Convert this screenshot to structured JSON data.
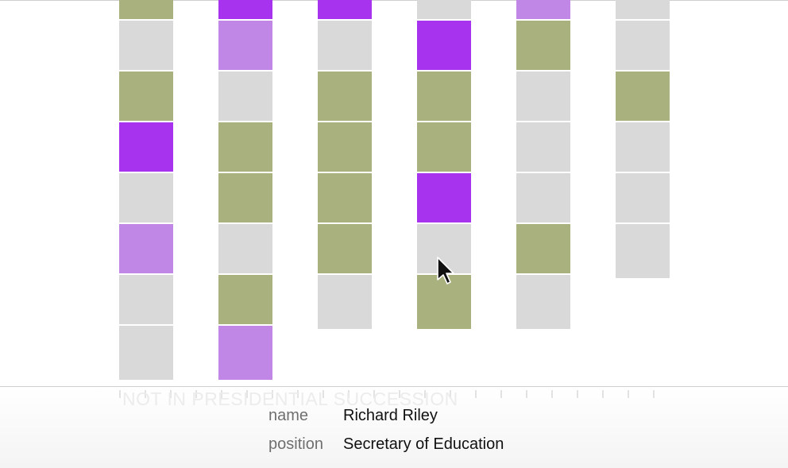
{
  "chart_data": {
    "type": "heatmap",
    "title": "",
    "xlabel": "",
    "ylabel": "",
    "legend": [],
    "colors": {
      "green": "#a9b27f",
      "purple": "#a833ee",
      "lavender": "#c087e6",
      "gray": "#d9d9d9"
    },
    "columns": [
      {
        "cells": [
          "green",
          "gray",
          "green",
          "purple",
          "gray",
          "lavender",
          "gray",
          "gray"
        ]
      },
      {
        "cells": [
          "purple",
          "lavender",
          "gray",
          "green",
          "green",
          "gray",
          "green",
          "lavender"
        ]
      },
      {
        "cells": [
          "purple",
          "gray",
          "green",
          "green",
          "green",
          "green",
          "gray"
        ]
      },
      {
        "cells": [
          "gray",
          "purple",
          "green",
          "green",
          "purple",
          "gray",
          "green"
        ]
      },
      {
        "cells": [
          "lavender",
          "green",
          "gray",
          "gray",
          "gray",
          "green",
          "gray"
        ]
      },
      {
        "cells": [
          "gray",
          "gray",
          "green",
          "gray",
          "gray",
          "gray"
        ]
      }
    ]
  },
  "tooltip": {
    "heading": "NOT IN PRESIDENTIAL SUCCESSION",
    "fields": [
      {
        "key": "name",
        "value": "Richard Riley"
      },
      {
        "key": "position",
        "value": "Secretary of Education"
      }
    ]
  },
  "cursor": {
    "icon": "arrow-cursor-icon"
  }
}
